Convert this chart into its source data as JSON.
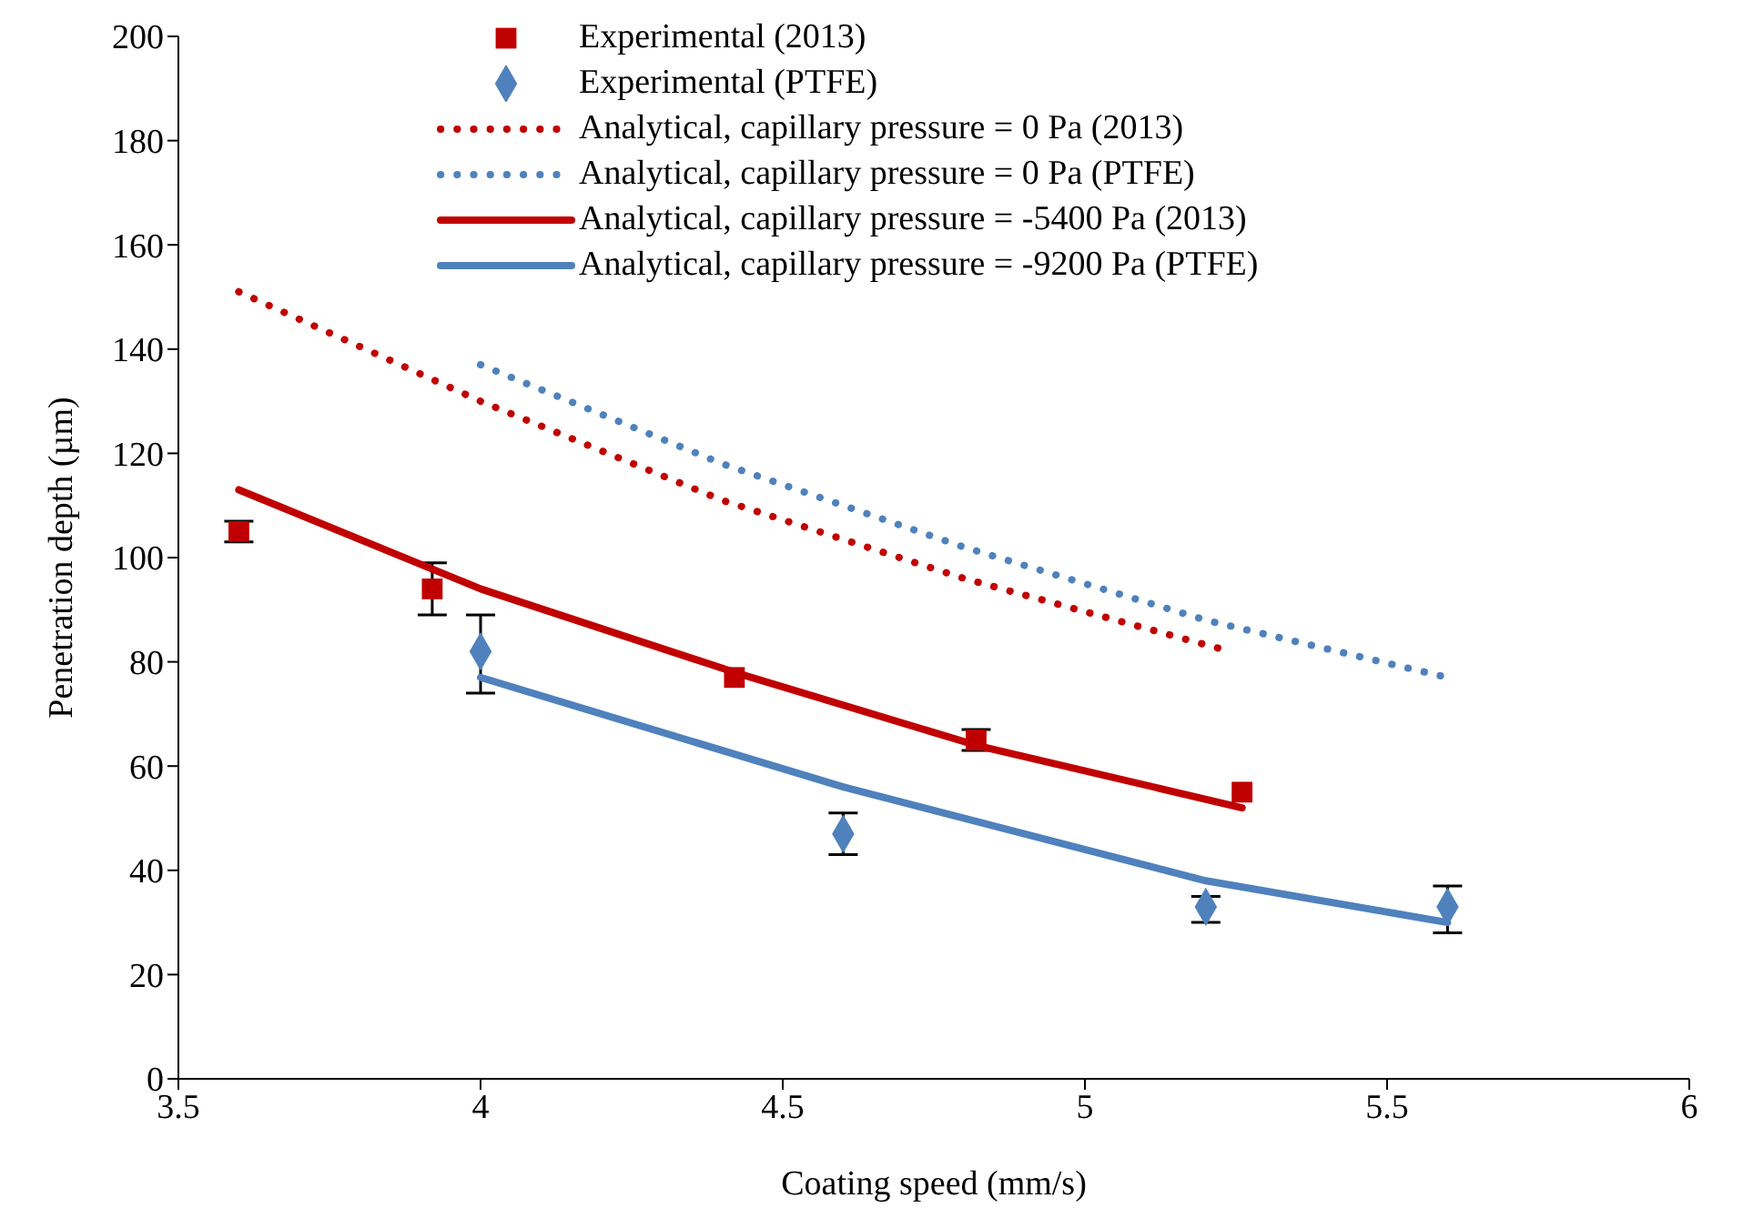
{
  "chart_data": {
    "type": "line",
    "xlabel": "Coating speed (mm/s)",
    "ylabel": "Penetration depth (µm)",
    "xlim": [
      3.5,
      6
    ],
    "xticks": [
      3.5,
      4,
      4.5,
      5,
      5.5,
      6
    ],
    "ylim": [
      0,
      200
    ],
    "yticks": [
      0,
      20,
      40,
      60,
      80,
      100,
      120,
      140,
      160,
      180,
      200
    ],
    "grid": false,
    "legend": "top",
    "series": [
      {
        "name": "Experimental (2013)",
        "type": "scatter",
        "marker": "square",
        "color": "#c00000",
        "x": [
          3.6,
          3.92,
          4.42,
          4.82,
          5.26
        ],
        "values": [
          105,
          94,
          77,
          65,
          55
        ],
        "errors": [
          2,
          5,
          null,
          2,
          null
        ]
      },
      {
        "name": "Experimental (PTFE)",
        "type": "scatter",
        "marker": "diamond",
        "color": "#4f81bd",
        "x": [
          4.0,
          4.6,
          5.2,
          5.6
        ],
        "values": [
          82,
          47,
          33,
          33
        ],
        "errors": [
          [
            74,
            89
          ],
          [
            43,
            51
          ],
          [
            30,
            35
          ],
          [
            28,
            37
          ]
        ]
      },
      {
        "name": "Analytical, capillary pressure = 0 Pa (2013)",
        "type": "line",
        "line_style": "dotted",
        "marker": "none",
        "color": "#c00000",
        "x": [
          3.6,
          4.0,
          4.4,
          4.8,
          5.24
        ],
        "values": [
          151,
          130,
          111,
          96,
          82
        ]
      },
      {
        "name": "Analytical, capillary pressure = 0 Pa (PTFE)",
        "type": "line",
        "line_style": "dotted",
        "marker": "none",
        "color": "#4f81bd",
        "x": [
          4.0,
          4.4,
          4.8,
          5.2,
          5.6
        ],
        "values": [
          137,
          118,
          102,
          88,
          77
        ]
      },
      {
        "name": "Analytical, capillary pressure = -5400 Pa (2013)",
        "type": "line",
        "line_style": "solid",
        "marker": "none",
        "color": "#c00000",
        "x": [
          3.6,
          4.0,
          4.42,
          4.82,
          5.26
        ],
        "values": [
          113,
          94,
          78,
          64,
          52
        ]
      },
      {
        "name": "Analytical, capillary pressure = -9200 Pa (PTFE)",
        "type": "line",
        "line_style": "solid",
        "marker": "none",
        "color": "#4f81bd",
        "x": [
          4.0,
          4.6,
          5.2,
          5.6
        ],
        "values": [
          77,
          56,
          38,
          30
        ]
      }
    ]
  }
}
